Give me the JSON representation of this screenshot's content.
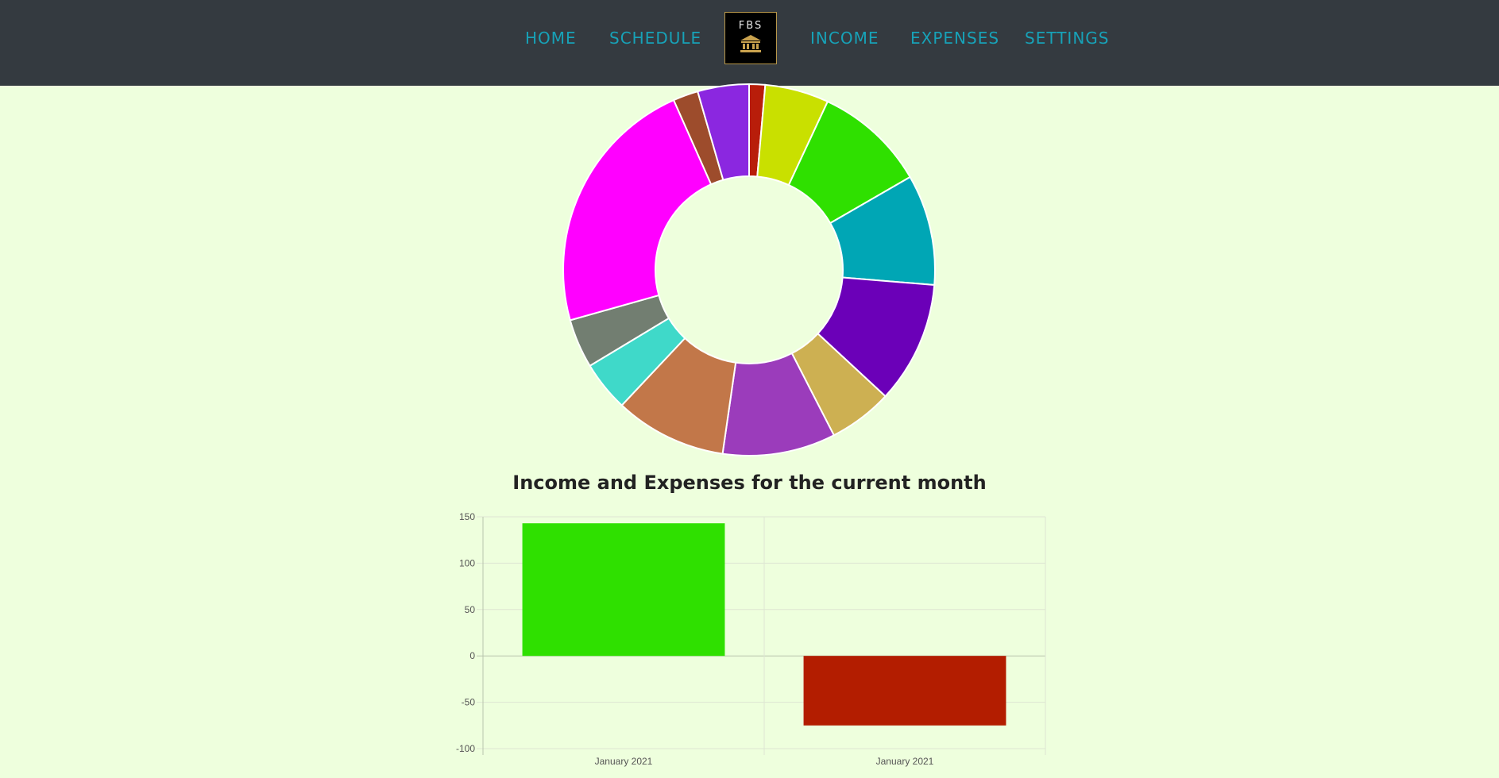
{
  "nav": {
    "home": "HOME",
    "schedule": "SCHEDULE",
    "income": "INCOME",
    "expenses": "EXPENSES",
    "settings": "SETTINGS",
    "logo_text": "FBS",
    "logo_icon": "bank-icon"
  },
  "colors": {
    "navbar_bg": "#343a40",
    "nav_link": "#17a2b8",
    "page_bg": "#eeffdd"
  },
  "chart_data": [
    {
      "type": "pie",
      "variant": "doughnut",
      "legend": "none",
      "values": [
        1.4,
        5.6,
        9.8,
        9.7,
        10.7,
        5.6,
        9.9,
        9.8,
        4.4,
        4.3,
        22.9,
        2.2,
        4.5
      ],
      "colors": [
        "#b81d0a",
        "#c9e000",
        "#2fe000",
        "#00a6b5",
        "#6b00b8",
        "#cdb052",
        "#9b3cbb",
        "#c27749",
        "#3fd9c9",
        "#727e71",
        "#ff00ff",
        "#9d4c2c",
        "#8b27e0"
      ]
    },
    {
      "type": "bar",
      "title": "Income and Expenses for the current month",
      "categories": [
        "January 2021",
        "January 2021"
      ],
      "values": [
        143,
        -75
      ],
      "colors": [
        "#2fe000",
        "#b31d00"
      ],
      "ylim": [
        -100,
        150
      ],
      "yticks": [
        "150",
        "100",
        "50",
        "0",
        "-50",
        "-100"
      ],
      "grid": true,
      "legend": "none"
    }
  ]
}
